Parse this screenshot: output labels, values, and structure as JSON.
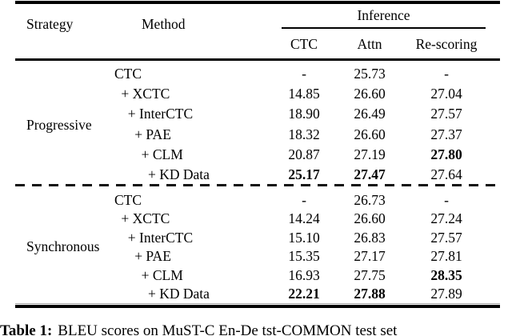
{
  "table": {
    "headers": {
      "strategy": "Strategy",
      "method": "Method",
      "inference": "Inference",
      "sub": [
        "CTC",
        "Attn",
        "Re-scoring"
      ]
    },
    "sections": [
      {
        "strategy": "Progressive",
        "rows": [
          {
            "method": "CTC",
            "ctc": "-",
            "attn": "25.73",
            "rescoring": "-",
            "bold": []
          },
          {
            "method": "+ XCTC",
            "ctc": "14.85",
            "attn": "26.60",
            "rescoring": "27.04",
            "bold": []
          },
          {
            "method": "+ InterCTC",
            "ctc": "18.90",
            "attn": "26.49",
            "rescoring": "27.57",
            "bold": []
          },
          {
            "method": "+ PAE",
            "ctc": "18.32",
            "attn": "26.60",
            "rescoring": "27.37",
            "bold": []
          },
          {
            "method": "+ CLM",
            "ctc": "20.87",
            "attn": "27.19",
            "rescoring": "27.80",
            "bold": [
              "rescoring"
            ]
          },
          {
            "method": "+ KD Data",
            "ctc": "25.17",
            "attn": "27.47",
            "rescoring": "27.64",
            "bold": [
              "ctc",
              "attn"
            ]
          }
        ]
      },
      {
        "strategy": "Synchronous",
        "rows": [
          {
            "method": "CTC",
            "ctc": "-",
            "attn": "26.73",
            "rescoring": "-",
            "bold": []
          },
          {
            "method": "+ XCTC",
            "ctc": "14.24",
            "attn": "26.60",
            "rescoring": "27.24",
            "bold": []
          },
          {
            "method": "+ InterCTC",
            "ctc": "15.10",
            "attn": "26.83",
            "rescoring": "27.57",
            "bold": []
          },
          {
            "method": "+ PAE",
            "ctc": "15.35",
            "attn": "27.17",
            "rescoring": "27.81",
            "bold": []
          },
          {
            "method": "+ CLM",
            "ctc": "16.93",
            "attn": "27.75",
            "rescoring": "28.35",
            "bold": [
              "rescoring"
            ]
          },
          {
            "method": "+ KD Data",
            "ctc": "22.21",
            "attn": "27.88",
            "rescoring": "27.89",
            "bold": [
              "ctc",
              "attn"
            ]
          }
        ]
      }
    ]
  },
  "caption": {
    "label": "Table 1:",
    "text": "BLEU scores on MuST-C En-De tst-COMMON test set"
  }
}
